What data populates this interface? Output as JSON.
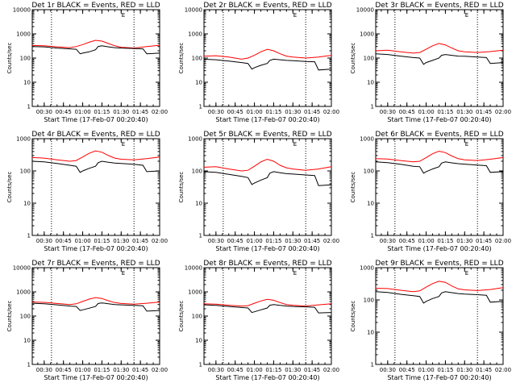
{
  "colors": {
    "events": "#000000",
    "lld": "#ff0000",
    "background": "#ffffff"
  },
  "chart_data": [
    {
      "type": "line",
      "title": "Det 1r BLACK = Events, RED = LLD",
      "xlabel": "Start Time (17-Feb-07 00:20:40)",
      "ylabel": "Counts/sec",
      "yscale": "log",
      "ylim": [
        1,
        10000
      ],
      "xlim": [
        "00:20:40",
        "02:00:00"
      ],
      "x_tick_labels": [
        "00:30",
        "00:45",
        "01:00",
        "01:15",
        "01:30",
        "01:45",
        "02:00"
      ],
      "y_tick_labels": [
        "1",
        "10",
        "100",
        "1000",
        "10000"
      ],
      "annotation": "E",
      "vlines": [
        "00:35:40",
        "01:40:00"
      ],
      "grid": false,
      "legend": "none",
      "series": [
        {
          "color": "red",
          "x": [
            "00:20:40",
            "00:30",
            "00:40",
            "00:50",
            "00:55",
            "01:00",
            "01:05",
            "01:10",
            "01:15",
            "01:20",
            "01:25",
            "01:30",
            "01:40",
            "01:50",
            "02:00"
          ],
          "values": [
            330,
            320,
            290,
            270,
            300,
            360,
            450,
            540,
            500,
            400,
            320,
            280,
            260,
            300,
            340
          ]
        },
        {
          "color": "black",
          "x": [
            "00:20:40",
            "00:30",
            "00:40",
            "00:50",
            "00:55",
            "00:58",
            "01:00",
            "01:05",
            "01:10",
            "01:12",
            "01:15",
            "01:20",
            "01:25",
            "01:30",
            "01:40",
            "01:47",
            "01:50",
            "02:00"
          ],
          "values": [
            300,
            290,
            260,
            240,
            230,
            150,
            160,
            180,
            220,
            300,
            320,
            290,
            270,
            260,
            250,
            240,
            150,
            160
          ]
        }
      ]
    },
    {
      "type": "line",
      "title": "Det 2r BLACK = Events, RED = LLD",
      "xlabel": "Start Time (17-Feb-07 00:20:40)",
      "ylabel": "Counts/sec",
      "yscale": "log",
      "ylim": [
        1,
        10000
      ],
      "xlim": [
        "00:20:40",
        "02:00:00"
      ],
      "x_tick_labels": [
        "00:30",
        "00:45",
        "01:00",
        "01:15",
        "01:30",
        "01:45",
        "02:00"
      ],
      "y_tick_labels": [
        "1",
        "10",
        "100",
        "1000",
        "10000"
      ],
      "annotation": "E",
      "vlines": [
        "00:35:40",
        "01:40:00"
      ],
      "grid": false,
      "legend": "none",
      "series": [
        {
          "color": "red",
          "x": [
            "00:20:40",
            "00:30",
            "00:40",
            "00:50",
            "00:55",
            "01:00",
            "01:05",
            "01:10",
            "01:15",
            "01:20",
            "01:25",
            "01:30",
            "01:40",
            "01:50",
            "02:00"
          ],
          "values": [
            120,
            125,
            110,
            90,
            100,
            130,
            180,
            230,
            200,
            150,
            120,
            110,
            100,
            110,
            130
          ]
        },
        {
          "color": "black",
          "x": [
            "00:20:40",
            "00:30",
            "00:40",
            "00:50",
            "00:55",
            "00:58",
            "01:00",
            "01:05",
            "01:10",
            "01:12",
            "01:15",
            "01:20",
            "01:25",
            "01:30",
            "01:40",
            "01:47",
            "01:50",
            "02:00"
          ],
          "values": [
            90,
            85,
            75,
            65,
            60,
            35,
            40,
            50,
            60,
            80,
            90,
            85,
            80,
            78,
            72,
            70,
            32,
            35
          ]
        }
      ]
    },
    {
      "type": "line",
      "title": "Det 3r BLACK = Events, RED = LLD",
      "xlabel": "Start Time (17-Feb-07 00:20:40)",
      "ylabel": "Counts/sec",
      "yscale": "log",
      "ylim": [
        1,
        10000
      ],
      "xlim": [
        "00:20:40",
        "02:00:00"
      ],
      "x_tick_labels": [
        "00:30",
        "00:45",
        "01:00",
        "01:15",
        "01:30",
        "01:45",
        "02:00"
      ],
      "y_tick_labels": [
        "1",
        "10",
        "100",
        "1000",
        "10000"
      ],
      "annotation": "E",
      "vlines": [
        "00:35:40",
        "01:40:00"
      ],
      "grid": false,
      "legend": "none",
      "series": [
        {
          "color": "red",
          "x": [
            "00:20:40",
            "00:30",
            "00:40",
            "00:50",
            "00:55",
            "01:00",
            "01:05",
            "01:10",
            "01:15",
            "01:20",
            "01:25",
            "01:30",
            "01:40",
            "01:50",
            "02:00"
          ],
          "values": [
            200,
            210,
            180,
            160,
            170,
            230,
            320,
            400,
            350,
            260,
            200,
            180,
            170,
            185,
            210
          ]
        },
        {
          "color": "black",
          "x": [
            "00:20:40",
            "00:30",
            "00:40",
            "00:50",
            "00:55",
            "00:58",
            "01:00",
            "01:05",
            "01:10",
            "01:12",
            "01:15",
            "01:20",
            "01:25",
            "01:30",
            "01:40",
            "01:47",
            "01:50",
            "02:00"
          ],
          "values": [
            150,
            140,
            120,
            105,
            100,
            55,
            65,
            80,
            100,
            130,
            140,
            130,
            120,
            118,
            110,
            105,
            60,
            65
          ]
        }
      ]
    },
    {
      "type": "line",
      "title": "Det 4r BLACK = Events, RED = LLD",
      "xlabel": "Start Time (17-Feb-07 00:20:40)",
      "ylabel": "Counts/sec",
      "yscale": "log",
      "ylim": [
        1,
        1000
      ],
      "xlim": [
        "00:20:40",
        "02:00:00"
      ],
      "x_tick_labels": [
        "00:30",
        "00:45",
        "01:00",
        "01:15",
        "01:30",
        "01:45",
        "02:00"
      ],
      "y_tick_labels": [
        "1",
        "10",
        "100",
        "1000"
      ],
      "annotation": "E",
      "vlines": [
        "00:35:40",
        "01:40:00"
      ],
      "grid": false,
      "legend": "none",
      "series": [
        {
          "color": "red",
          "x": [
            "00:20:40",
            "00:30",
            "00:40",
            "00:50",
            "00:55",
            "01:00",
            "01:05",
            "01:10",
            "01:15",
            "01:20",
            "01:25",
            "01:30",
            "01:40",
            "01:50",
            "02:00"
          ],
          "values": [
            260,
            250,
            220,
            200,
            210,
            270,
            350,
            420,
            380,
            300,
            250,
            230,
            220,
            240,
            270
          ]
        },
        {
          "color": "black",
          "x": [
            "00:20:40",
            "00:30",
            "00:40",
            "00:50",
            "00:55",
            "00:58",
            "01:00",
            "01:05",
            "01:10",
            "01:12",
            "01:15",
            "01:20",
            "01:25",
            "01:30",
            "01:40",
            "01:47",
            "01:50",
            "02:00"
          ],
          "values": [
            200,
            190,
            170,
            150,
            140,
            90,
            100,
            120,
            140,
            180,
            200,
            185,
            175,
            170,
            160,
            150,
            95,
            100
          ]
        }
      ]
    },
    {
      "type": "line",
      "title": "Det 5r BLACK = Events, RED = LLD",
      "xlabel": "Start Time (17-Feb-07 00:20:40)",
      "ylabel": "Counts/sec",
      "yscale": "log",
      "ylim": [
        1,
        1000
      ],
      "xlim": [
        "00:20:40",
        "02:00:00"
      ],
      "x_tick_labels": [
        "00:30",
        "00:45",
        "01:00",
        "01:15",
        "01:30",
        "01:45",
        "02:00"
      ],
      "y_tick_labels": [
        "1",
        "10",
        "100",
        "1000"
      ],
      "annotation": "E",
      "vlines": [
        "00:35:40",
        "01:40:00"
      ],
      "grid": false,
      "legend": "none",
      "series": [
        {
          "color": "red",
          "x": [
            "00:20:40",
            "00:30",
            "00:40",
            "00:50",
            "00:55",
            "01:00",
            "01:05",
            "01:10",
            "01:15",
            "01:20",
            "01:25",
            "01:30",
            "01:40",
            "01:50",
            "02:00"
          ],
          "values": [
            130,
            135,
            115,
            100,
            105,
            140,
            190,
            230,
            200,
            150,
            125,
            115,
            105,
            115,
            135
          ]
        },
        {
          "color": "black",
          "x": [
            "00:20:40",
            "00:30",
            "00:40",
            "00:50",
            "00:55",
            "00:58",
            "01:00",
            "01:05",
            "01:10",
            "01:12",
            "01:15",
            "01:20",
            "01:25",
            "01:30",
            "01:40",
            "01:47",
            "01:50",
            "02:00"
          ],
          "values": [
            95,
            90,
            78,
            68,
            62,
            38,
            42,
            52,
            62,
            85,
            95,
            88,
            82,
            80,
            75,
            72,
            35,
            37
          ]
        }
      ]
    },
    {
      "type": "line",
      "title": "Det 6r BLACK = Events, RED = LLD",
      "xlabel": "Start Time (17-Feb-07 00:20:40)",
      "ylabel": "Counts/sec",
      "yscale": "log",
      "ylim": [
        1,
        1000
      ],
      "xlim": [
        "00:20:40",
        "02:00:00"
      ],
      "x_tick_labels": [
        "00:30",
        "00:45",
        "01:00",
        "01:15",
        "01:30",
        "01:45",
        "02:00"
      ],
      "y_tick_labels": [
        "1",
        "10",
        "100",
        "1000"
      ],
      "annotation": "E",
      "vlines": [
        "00:35:40",
        "01:40:00"
      ],
      "grid": false,
      "legend": "none",
      "series": [
        {
          "color": "red",
          "x": [
            "00:20:40",
            "00:30",
            "00:40",
            "00:50",
            "00:55",
            "01:00",
            "01:05",
            "01:10",
            "01:15",
            "01:20",
            "01:25",
            "01:30",
            "01:40",
            "01:50",
            "02:00"
          ],
          "values": [
            240,
            235,
            210,
            190,
            200,
            260,
            340,
            410,
            370,
            290,
            240,
            220,
            210,
            230,
            260
          ]
        },
        {
          "color": "black",
          "x": [
            "00:20:40",
            "00:30",
            "00:40",
            "00:50",
            "00:55",
            "00:58",
            "01:00",
            "01:05",
            "01:10",
            "01:12",
            "01:15",
            "01:20",
            "01:25",
            "01:30",
            "01:40",
            "01:47",
            "01:50",
            "02:00"
          ],
          "values": [
            190,
            180,
            160,
            140,
            135,
            85,
            95,
            115,
            135,
            175,
            190,
            178,
            168,
            162,
            152,
            145,
            90,
            95
          ]
        }
      ]
    },
    {
      "type": "line",
      "title": "Det 7r BLACK = Events, RED = LLD",
      "xlabel": "Start Time (17-Feb-07 00:20:40)",
      "ylabel": "Counts/sec",
      "yscale": "log",
      "ylim": [
        1,
        10000
      ],
      "xlim": [
        "00:20:40",
        "02:00:00"
      ],
      "x_tick_labels": [
        "00:30",
        "00:45",
        "01:00",
        "01:15",
        "01:30",
        "01:45",
        "02:00"
      ],
      "y_tick_labels": [
        "1",
        "10",
        "100",
        "1000",
        "10000"
      ],
      "annotation": "E",
      "vlines": [
        "00:35:40",
        "01:40:00"
      ],
      "grid": false,
      "legend": "none",
      "series": [
        {
          "color": "red",
          "x": [
            "00:20:40",
            "00:30",
            "00:40",
            "00:50",
            "00:55",
            "01:00",
            "01:05",
            "01:10",
            "01:15",
            "01:20",
            "01:25",
            "01:30",
            "01:40",
            "01:50",
            "02:00"
          ],
          "values": [
            380,
            370,
            330,
            300,
            320,
            400,
            500,
            580,
            530,
            430,
            360,
            330,
            310,
            340,
            380
          ]
        },
        {
          "color": "black",
          "x": [
            "00:20:40",
            "00:30",
            "00:40",
            "00:50",
            "00:55",
            "00:58",
            "01:00",
            "01:05",
            "01:10",
            "01:12",
            "01:15",
            "01:20",
            "01:25",
            "01:30",
            "01:40",
            "01:47",
            "01:50",
            "02:00"
          ],
          "values": [
            340,
            320,
            290,
            260,
            250,
            170,
            180,
            210,
            250,
            330,
            350,
            320,
            300,
            290,
            275,
            265,
            160,
            170
          ]
        }
      ]
    },
    {
      "type": "line",
      "title": "Det 8r BLACK = Events, RED = LLD",
      "xlabel": "Start Time (17-Feb-07 00:20:40)",
      "ylabel": "Counts/sec",
      "yscale": "log",
      "ylim": [
        1,
        10000
      ],
      "xlim": [
        "00:20:40",
        "02:00:00"
      ],
      "x_tick_labels": [
        "00:30",
        "00:45",
        "01:00",
        "01:15",
        "01:30",
        "01:45",
        "02:00"
      ],
      "y_tick_labels": [
        "1",
        "10",
        "100",
        "1000",
        "10000"
      ],
      "annotation": "E",
      "vlines": [
        "00:35:40",
        "01:40:00"
      ],
      "grid": false,
      "legend": "none",
      "series": [
        {
          "color": "red",
          "x": [
            "00:20:40",
            "00:30",
            "00:40",
            "00:50",
            "00:55",
            "01:00",
            "01:05",
            "01:10",
            "01:15",
            "01:20",
            "01:25",
            "01:30",
            "01:40",
            "01:50",
            "02:00"
          ],
          "values": [
            320,
            310,
            280,
            260,
            270,
            340,
            420,
            490,
            450,
            360,
            300,
            280,
            260,
            290,
            320
          ]
        },
        {
          "color": "black",
          "x": [
            "00:20:40",
            "00:30",
            "00:40",
            "00:50",
            "00:55",
            "00:58",
            "01:00",
            "01:05",
            "01:10",
            "01:12",
            "01:15",
            "01:20",
            "01:25",
            "01:30",
            "01:40",
            "01:47",
            "01:50",
            "02:00"
          ],
          "values": [
            290,
            275,
            250,
            225,
            215,
            140,
            150,
            180,
            215,
            280,
            300,
            275,
            260,
            250,
            240,
            230,
            135,
            140
          ]
        }
      ]
    },
    {
      "type": "line",
      "title": "Det 9r BLACK = Events, RED = LLD",
      "xlabel": "Start Time (17-Feb-07 00:20:40)",
      "ylabel": "Counts/sec",
      "yscale": "log",
      "ylim": [
        1,
        1000
      ],
      "xlim": [
        "00:20:40",
        "02:00:00"
      ],
      "x_tick_labels": [
        "00:30",
        "00:45",
        "01:00",
        "01:15",
        "01:30",
        "01:45",
        "02:00"
      ],
      "y_tick_labels": [
        "1",
        "10",
        "100",
        "1000"
      ],
      "annotation": "E",
      "vlines": [
        "00:35:40",
        "01:40:00"
      ],
      "grid": false,
      "legend": "none",
      "series": [
        {
          "color": "red",
          "x": [
            "00:20:40",
            "00:30",
            "00:40",
            "00:50",
            "00:55",
            "01:00",
            "01:05",
            "01:10",
            "01:15",
            "01:20",
            "01:25",
            "01:30",
            "01:40",
            "01:50",
            "02:00"
          ],
          "values": [
            230,
            225,
            200,
            180,
            190,
            250,
            320,
            380,
            350,
            270,
            220,
            205,
            195,
            210,
            240
          ]
        },
        {
          "color": "black",
          "x": [
            "00:20:40",
            "00:30",
            "00:40",
            "00:50",
            "00:55",
            "00:58",
            "01:00",
            "01:05",
            "01:10",
            "01:12",
            "01:15",
            "01:20",
            "01:25",
            "01:30",
            "01:40",
            "01:47",
            "01:50",
            "02:00"
          ],
          "values": [
            180,
            170,
            150,
            135,
            128,
            80,
            90,
            110,
            128,
            165,
            180,
            168,
            158,
            152,
            145,
            140,
            85,
            90
          ]
        }
      ]
    }
  ]
}
